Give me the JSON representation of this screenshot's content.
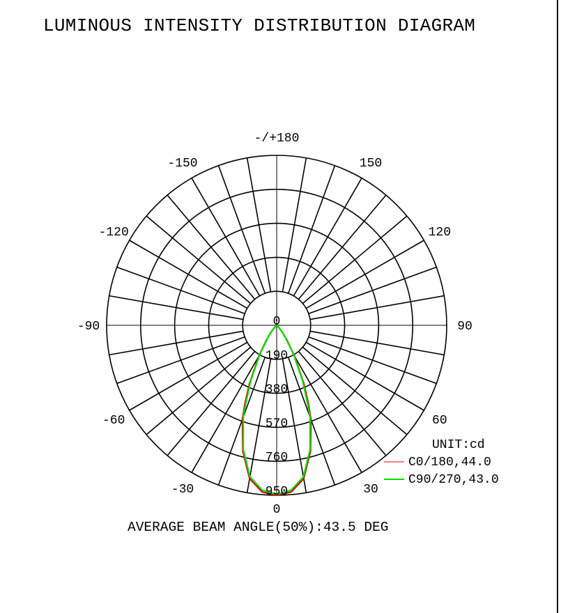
{
  "chart_data": {
    "type": "polar-line",
    "title": "LUMINOUS INTENSITY DISTRIBUTION DIAGRAM",
    "unit_label": "UNIT:cd",
    "radial_ticks": [
      "0",
      "190",
      "380",
      "570",
      "760",
      "950"
    ],
    "radial_range": [
      0,
      950
    ],
    "angle_ticks": [
      "-/+180",
      "150",
      "120",
      "90",
      "60",
      "30",
      "0",
      "-30",
      "-60",
      "-90",
      "-120",
      "-150"
    ],
    "angle_tick_values": [
      180,
      150,
      120,
      90,
      60,
      30,
      0,
      -30,
      -60,
      -90,
      -120,
      -150
    ],
    "grid": true,
    "legend_position": "bottom-right",
    "series": [
      {
        "name": "C0/180,44.0",
        "color": "#e00000",
        "angles": [
          0,
          5,
          10,
          15,
          20,
          22,
          25,
          30,
          35,
          40,
          45,
          50,
          60,
          90
        ],
        "values": [
          950,
          935,
          870,
          730,
          560,
          475,
          360,
          200,
          100,
          45,
          15,
          5,
          0,
          0
        ]
      },
      {
        "name": "C90/270,43.0",
        "color": "#00e000",
        "angles": [
          0,
          5,
          10,
          15,
          20,
          21.5,
          25,
          30,
          35,
          40,
          45,
          50,
          60,
          90
        ],
        "values": [
          945,
          925,
          860,
          720,
          545,
          472,
          345,
          190,
          90,
          40,
          12,
          4,
          0,
          0
        ]
      }
    ],
    "footer": "AVERAGE BEAM ANGLE(50%):43.5 DEG"
  }
}
